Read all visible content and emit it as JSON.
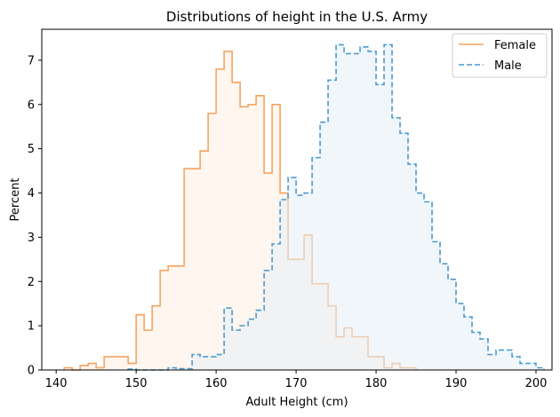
{
  "chart_data": {
    "type": "histogram",
    "title": "Distributions of height in the U.S. Army",
    "xlabel": "Adult Height (cm)",
    "ylabel": "Percent",
    "xlim": [
      138.2,
      202.0
    ],
    "ylim": [
      0,
      7.7
    ],
    "xticks": [
      140,
      150,
      160,
      170,
      180,
      190,
      200
    ],
    "yticks": [
      0,
      1,
      2,
      3,
      4,
      5,
      6,
      7
    ],
    "grid": false,
    "legend_position": "top-right",
    "bin_width": 1,
    "series": [
      {
        "name": "Female",
        "color": "#f4a460",
        "fill": "#fdeee2",
        "line_style": "solid",
        "x_start": 141,
        "values": [
          0.05,
          0,
          0.1,
          0.15,
          0.05,
          0.3,
          0.3,
          0.3,
          0.15,
          1.25,
          0.9,
          1.45,
          2.25,
          2.35,
          2.35,
          4.55,
          4.55,
          4.95,
          5.8,
          6.8,
          7.2,
          6.5,
          5.95,
          6.0,
          6.2,
          4.45,
          6.0,
          4.0,
          2.5,
          2.5,
          3.05,
          1.95,
          1.95,
          1.45,
          0.75,
          0.95,
          0.75,
          0.75,
          0.3,
          0.3,
          0.05,
          0.15,
          0.05,
          0.05
        ]
      },
      {
        "name": "Male",
        "color": "#4a9bcf",
        "fill": "#e5eff8",
        "line_style": "dashed",
        "x_start": 149,
        "values": [
          0.02,
          0,
          0,
          0,
          0,
          0.05,
          0.03,
          0.03,
          0.35,
          0.3,
          0.3,
          0.35,
          1.4,
          0.9,
          1.0,
          1.15,
          1.35,
          2.25,
          2.85,
          3.85,
          4.35,
          3.95,
          4.0,
          4.8,
          5.6,
          6.55,
          7.35,
          7.15,
          7.15,
          7.3,
          7.2,
          6.45,
          7.35,
          5.7,
          5.35,
          4.65,
          4.0,
          3.8,
          2.9,
          2.4,
          2.05,
          1.5,
          1.2,
          0.85,
          0.7,
          0.35,
          0.45,
          0.45,
          0.3,
          0.15,
          0.15,
          0.05
        ]
      }
    ]
  }
}
